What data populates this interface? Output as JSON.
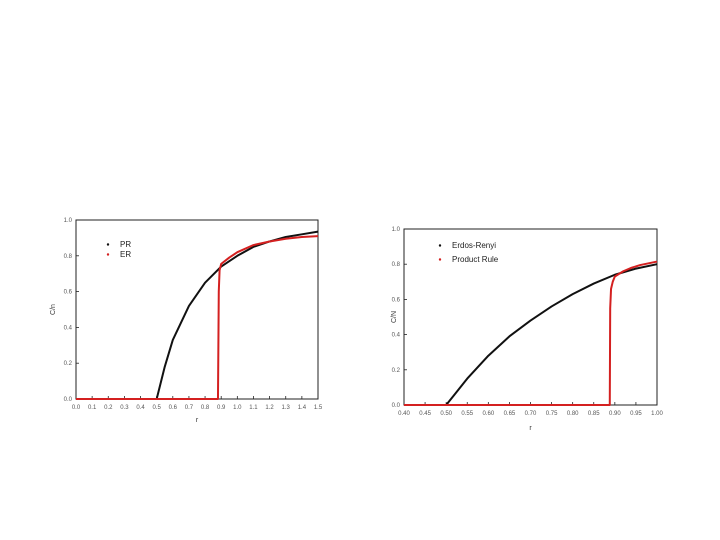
{
  "chart_data": [
    {
      "type": "line",
      "xlabel": "r",
      "ylabel": "C/n",
      "xlim": [
        0,
        1.5
      ],
      "ylim": [
        0,
        1.0
      ],
      "x_ticks": [
        "0.0",
        "0.1",
        "0.2",
        "0.3",
        "0.4",
        "0.5",
        "0.6",
        "0.7",
        "0.8",
        "0.9",
        "1.0",
        "1.1",
        "1.2",
        "1.3",
        "1.4",
        "1.5"
      ],
      "y_ticks": [
        "0.0",
        "0.2",
        "0.4",
        "0.6",
        "0.8",
        "1.0"
      ],
      "legend_position": "top-left",
      "series": [
        {
          "name": "PR",
          "color": "#111111",
          "x": [
            0,
            0.5,
            0.55,
            0.6,
            0.7,
            0.8,
            0.9,
            1.0,
            1.1,
            1.2,
            1.3,
            1.4,
            1.5
          ],
          "y": [
            0,
            0,
            0.18,
            0.33,
            0.52,
            0.65,
            0.74,
            0.8,
            0.85,
            0.88,
            0.905,
            0.92,
            0.935
          ]
        },
        {
          "name": "ER",
          "color": "#d42020",
          "x": [
            0,
            0.88,
            0.885,
            0.89,
            0.9,
            0.95,
            1.0,
            1.1,
            1.2,
            1.3,
            1.4,
            1.5
          ],
          "y": [
            0,
            0,
            0.6,
            0.72,
            0.755,
            0.79,
            0.82,
            0.86,
            0.88,
            0.895,
            0.905,
            0.91
          ]
        }
      ]
    },
    {
      "type": "line",
      "xlabel": "r",
      "ylabel": "C/N",
      "xlim": [
        0.4,
        1.0
      ],
      "ylim": [
        0,
        1.0
      ],
      "x_ticks": [
        "0.40",
        "0.45",
        "0.50",
        "0.55",
        "0.60",
        "0.65",
        "0.70",
        "0.75",
        "0.80",
        "0.85",
        "0.90",
        "0.95",
        "1.00"
      ],
      "y_ticks": [
        "0.0",
        "0.2",
        "0.4",
        "0.6",
        "0.8",
        "1.0"
      ],
      "legend_position": "top-left",
      "series": [
        {
          "name": "Erdos-Renyi",
          "color": "#111111",
          "x": [
            0.4,
            0.5,
            0.52,
            0.55,
            0.6,
            0.65,
            0.7,
            0.75,
            0.8,
            0.85,
            0.9,
            0.95,
            1.0
          ],
          "y": [
            0,
            0,
            0.06,
            0.15,
            0.28,
            0.39,
            0.48,
            0.56,
            0.63,
            0.69,
            0.74,
            0.775,
            0.8
          ]
        },
        {
          "name": "Product Rule",
          "color": "#d42020",
          "x": [
            0.4,
            0.888,
            0.889,
            0.891,
            0.895,
            0.9,
            0.92,
            0.94,
            0.96,
            0.98,
            1.0
          ],
          "y": [
            0,
            0,
            0.55,
            0.66,
            0.7,
            0.73,
            0.76,
            0.78,
            0.795,
            0.805,
            0.815
          ]
        }
      ]
    }
  ]
}
